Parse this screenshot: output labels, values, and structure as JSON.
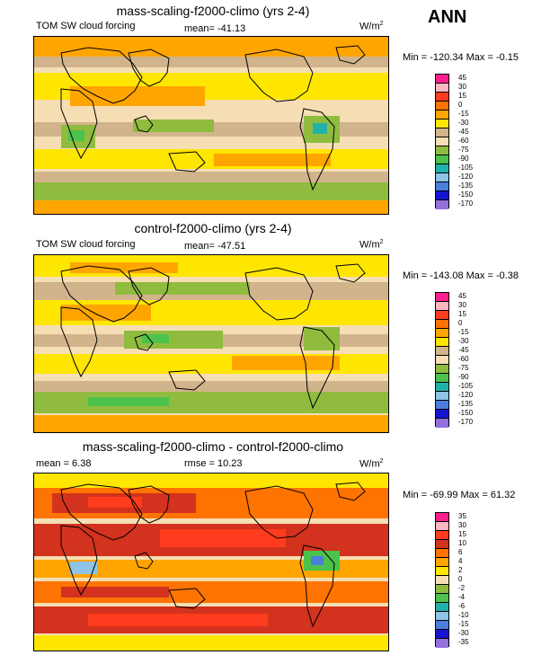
{
  "season": "ANN",
  "panels": [
    {
      "title": "mass-scaling-f2000-climo (yrs 2-4)",
      "left_label": "TOM SW cloud forcing",
      "center_label": "mean= -41.13",
      "units_base": "W/m",
      "units_exp": "2",
      "minmax": "Min = -120.34 Max =  -0.15",
      "levels": [
        "45",
        "30",
        "15",
        "0",
        "-15",
        "-30",
        "-45",
        "-60",
        "-75",
        "-90",
        "-105",
        "-120",
        "-135",
        "-150",
        "-170"
      ],
      "colors": [
        "#ff1f8f",
        "#ffb6c1",
        "#ff3c1e",
        "#ff7300",
        "#ffa500",
        "#ffe600",
        "#d2b48c",
        "#f5deb3",
        "#8fbc3f",
        "#4cc24c",
        "#20b2aa",
        "#8fc4e6",
        "#4a7fdc",
        "#1414d2",
        "#9370db"
      ]
    },
    {
      "title": "control-f2000-climo (yrs 2-4)",
      "left_label": "TOM SW cloud forcing",
      "center_label": "mean= -47.51",
      "units_base": "W/m",
      "units_exp": "2",
      "minmax": "Min = -143.08 Max =  -0.38",
      "levels": [
        "45",
        "30",
        "15",
        "0",
        "-15",
        "-30",
        "-45",
        "-60",
        "-75",
        "-90",
        "-105",
        "-120",
        "-135",
        "-150",
        "-170"
      ],
      "colors": [
        "#ff1f8f",
        "#ffb6c1",
        "#ff3c1e",
        "#ff7300",
        "#ffa500",
        "#ffe600",
        "#d2b48c",
        "#f5deb3",
        "#8fbc3f",
        "#4cc24c",
        "#20b2aa",
        "#8fc4e6",
        "#4a7fdc",
        "#1414d2",
        "#9370db"
      ]
    },
    {
      "title": "mass-scaling-f2000-climo - control-f2000-climo",
      "left_label": "mean =   6.38",
      "center_label": "rmse =  10.23",
      "units_base": "W/m",
      "units_exp": "2",
      "minmax": "Min = -69.99 Max =  61.32",
      "levels": [
        "35",
        "30",
        "15",
        "10",
        "6",
        "4",
        "2",
        "0",
        "-2",
        "-4",
        "-6",
        "-10",
        "-15",
        "-30",
        "-35"
      ],
      "colors": [
        "#ff1f8f",
        "#ffb6c1",
        "#ff3c1e",
        "#d2321e",
        "#ff7300",
        "#ffa500",
        "#ffe600",
        "#f5deb3",
        "#8fbc3f",
        "#4cc24c",
        "#20b2aa",
        "#8fc4e6",
        "#4a7fdc",
        "#1414d2",
        "#9370db"
      ]
    }
  ]
}
